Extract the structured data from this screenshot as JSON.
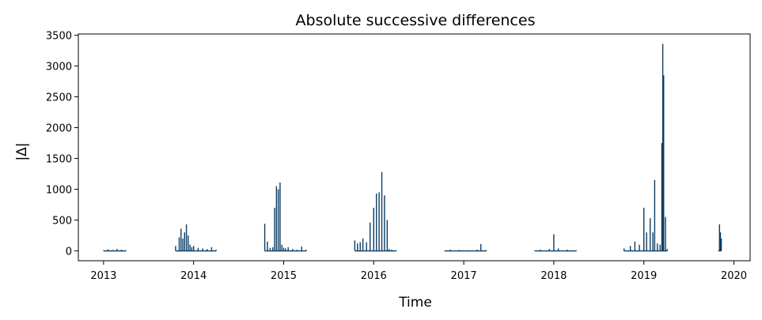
{
  "chart_data": {
    "type": "line",
    "title": "Absolute successive differences",
    "xlabel": "Time",
    "ylabel": "|Δ|",
    "xlim": [
      2012.72,
      2020.18
    ],
    "ylim": [
      -160,
      3520
    ],
    "xticks": [
      2013,
      2014,
      2015,
      2016,
      2017,
      2018,
      2019,
      2020
    ],
    "yticks": [
      0,
      500,
      1000,
      1500,
      2000,
      2500,
      3000,
      3500
    ],
    "grid": false,
    "color": "#0b3c63",
    "series": [
      {
        "x": [
          2013.0,
          2013.05,
          2013.1,
          2013.15,
          2013.2,
          2013.25,
          2013.8,
          2013.84,
          2013.86,
          2013.88,
          2013.9,
          2013.92,
          2013.94,
          2013.96,
          2013.98,
          2014.0,
          2014.05,
          2014.1,
          2014.15,
          2014.2,
          2014.25,
          2014.79,
          2014.82,
          2014.85,
          2014.88,
          2014.9,
          2014.92,
          2014.94,
          2014.96,
          2014.98,
          2015.0,
          2015.02,
          2015.05,
          2015.1,
          2015.15,
          2015.2,
          2015.25,
          2015.79,
          2015.82,
          2015.85,
          2015.88,
          2015.92,
          2015.96,
          2016.0,
          2016.03,
          2016.06,
          2016.09,
          2016.12,
          2016.15,
          2016.17,
          2016.2,
          2016.25,
          2016.79,
          2016.85,
          2016.95,
          2017.05,
          2017.15,
          2017.19,
          2017.25,
          2017.79,
          2017.85,
          2017.95,
          2018.0,
          2018.05,
          2018.15,
          2018.25,
          2018.78,
          2018.85,
          2018.9,
          2018.95,
          2019.0,
          2019.03,
          2019.07,
          2019.1,
          2019.12,
          2019.15,
          2019.18,
          2019.2,
          2019.21,
          2019.22,
          2019.24,
          2019.26,
          2019.83,
          2019.84,
          2019.85,
          2019.86
        ],
        "y": [
          10,
          25,
          15,
          30,
          20,
          10,
          80,
          220,
          360,
          200,
          300,
          430,
          250,
          100,
          60,
          80,
          50,
          40,
          30,
          60,
          20,
          440,
          150,
          50,
          60,
          700,
          1050,
          1000,
          1110,
          100,
          50,
          40,
          60,
          30,
          20,
          70,
          20,
          170,
          120,
          140,
          200,
          140,
          460,
          700,
          930,
          950,
          1280,
          900,
          500,
          30,
          20,
          10,
          10,
          20,
          15,
          10,
          20,
          110,
          15,
          10,
          20,
          30,
          270,
          40,
          20,
          10,
          40,
          80,
          150,
          100,
          700,
          300,
          530,
          300,
          1150,
          120,
          100,
          1750,
          3360,
          2850,
          550,
          30,
          10,
          430,
          300,
          200
        ]
      }
    ]
  }
}
